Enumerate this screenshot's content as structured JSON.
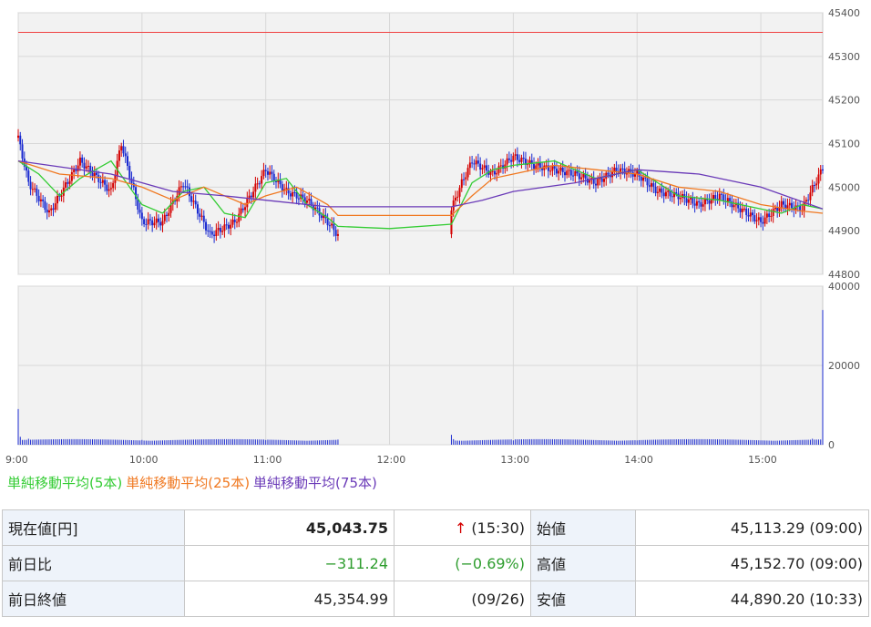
{
  "chart_data": [
    {
      "type": "candlestick",
      "ylim": [
        44800,
        45400
      ],
      "yticks": [
        "45400",
        "45300",
        "45200",
        "45100",
        "45000",
        "44900",
        "44800"
      ],
      "xticks": [
        "9:00",
        "10:00",
        "11:00",
        "12:00",
        "13:00",
        "14:00",
        "15:00"
      ],
      "reference_line": 45354.99,
      "colors": {
        "up": "#d40000",
        "down": "#1a2ad0",
        "ma5": "#33cc33",
        "ma25": "#f07820",
        "ma75": "#6a3ab8",
        "ref": "#f04040"
      },
      "series": [
        {
          "name": "単純移動平均(5本)",
          "points": [
            [
              "9:00",
              45060
            ],
            [
              "9:10",
              45030
            ],
            [
              "9:20",
              44980
            ],
            [
              "9:30",
              45020
            ],
            [
              "9:45",
              45060
            ],
            [
              "10:00",
              44960
            ],
            [
              "10:10",
              44940
            ],
            [
              "10:20",
              44990
            ],
            [
              "10:30",
              45000
            ],
            [
              "10:40",
              44940
            ],
            [
              "10:50",
              44930
            ],
            [
              "11:00",
              45010
            ],
            [
              "11:10",
              45020
            ],
            [
              "11:20",
              44960
            ],
            [
              "11:30",
              44930
            ],
            [
              "11:35",
              44910
            ],
            [
              "12:00",
              44905
            ],
            [
              "12:30",
              44915
            ],
            [
              "12:40",
              45010
            ],
            [
              "12:50",
              45040
            ],
            [
              "13:00",
              45050
            ],
            [
              "13:20",
              45060
            ],
            [
              "13:40",
              45020
            ],
            [
              "14:00",
              45040
            ],
            [
              "14:20",
              44980
            ],
            [
              "14:40",
              44970
            ],
            [
              "15:00",
              44950
            ],
            [
              "15:10",
              44940
            ],
            [
              "15:20",
              44960
            ],
            [
              "15:30",
              44950
            ]
          ]
        },
        {
          "name": "単純移動平均(25本)",
          "points": [
            [
              "9:00",
              45060
            ],
            [
              "9:20",
              45030
            ],
            [
              "9:45",
              45020
            ],
            [
              "10:00",
              45000
            ],
            [
              "10:15",
              44970
            ],
            [
              "10:30",
              45000
            ],
            [
              "10:50",
              44960
            ],
            [
              "11:00",
              44980
            ],
            [
              "11:15",
              45000
            ],
            [
              "11:30",
              44960
            ],
            [
              "11:35",
              44935
            ],
            [
              "12:30",
              44935
            ],
            [
              "12:40",
              44980
            ],
            [
              "12:50",
              45020
            ],
            [
              "13:00",
              45030
            ],
            [
              "13:20",
              45050
            ],
            [
              "13:40",
              45040
            ],
            [
              "14:00",
              45030
            ],
            [
              "14:20",
              45000
            ],
            [
              "14:40",
              44990
            ],
            [
              "15:00",
              44960
            ],
            [
              "15:20",
              44945
            ],
            [
              "15:30",
              44940
            ]
          ]
        },
        {
          "name": "単純移動平均(75本)",
          "points": [
            [
              "9:00",
              45060
            ],
            [
              "9:45",
              45030
            ],
            [
              "10:15",
              44990
            ],
            [
              "10:40",
              44980
            ],
            [
              "11:00",
              44970
            ],
            [
              "11:30",
              44955
            ],
            [
              "12:30",
              44955
            ],
            [
              "12:45",
              44970
            ],
            [
              "13:00",
              44990
            ],
            [
              "13:30",
              45010
            ],
            [
              "14:00",
              45040
            ],
            [
              "14:30",
              45030
            ],
            [
              "15:00",
              45000
            ],
            [
              "15:30",
              44950
            ]
          ]
        }
      ],
      "price_points": [
        [
          "9:00",
          45113.29
        ],
        [
          "9:05",
          45010
        ],
        [
          "9:15",
          44940
        ],
        [
          "9:30",
          45060
        ],
        [
          "9:45",
          44990
        ],
        [
          "9:50",
          45100
        ],
        [
          "10:00",
          44920
        ],
        [
          "10:10",
          44920
        ],
        [
          "10:20",
          45010
        ],
        [
          "10:33",
          44890.2
        ],
        [
          "10:45",
          44920
        ],
        [
          "11:00",
          45040
        ],
        [
          "11:10",
          44990
        ],
        [
          "11:20",
          44970
        ],
        [
          "11:30",
          44920
        ],
        [
          "11:35",
          44890
        ],
        [
          "12:30",
          44950
        ],
        [
          "12:35",
          45010
        ],
        [
          "12:40",
          45060
        ],
        [
          "12:50",
          45030
        ],
        [
          "13:00",
          45070
        ],
        [
          "13:10",
          45050
        ],
        [
          "13:20",
          45040
        ],
        [
          "13:30",
          45030
        ],
        [
          "13:40",
          45010
        ],
        [
          "13:50",
          45040
        ],
        [
          "14:00",
          45030
        ],
        [
          "14:10",
          44990
        ],
        [
          "14:20",
          44980
        ],
        [
          "14:30",
          44960
        ],
        [
          "14:40",
          44980
        ],
        [
          "14:50",
          44950
        ],
        [
          "15:00",
          44920
        ],
        [
          "15:10",
          44960
        ],
        [
          "15:20",
          44950
        ],
        [
          "15:30",
          45043.75
        ]
      ]
    },
    {
      "type": "bar",
      "ylim": [
        0,
        40000
      ],
      "yticks": [
        "40000",
        "20000",
        "0"
      ],
      "values_by_time": [
        [
          "9:00",
          9000
        ],
        [
          "9:01",
          2000
        ],
        [
          "9:05",
          1500
        ],
        [
          "10:00",
          1200
        ],
        [
          "11:00",
          1200
        ],
        [
          "11:35",
          1300
        ],
        [
          "12:30",
          2500
        ],
        [
          "12:31",
          1400
        ],
        [
          "13:00",
          1100
        ],
        [
          "14:00",
          1100
        ],
        [
          "15:00",
          1100
        ],
        [
          "15:25",
          1500
        ],
        [
          "15:30",
          34000
        ]
      ],
      "baseline": 1000
    }
  ],
  "legend": {
    "ma5": "単純移動平均(5本)",
    "ma25": "単純移動平均(25本)",
    "ma75": "単純移動平均(75本)"
  },
  "quote": {
    "current_label": "現在値[円]",
    "current_value": "45,043.75",
    "arrow": "↑",
    "current_time": "(15:30)",
    "open_label": "始値",
    "open_value": "45,113.29 (09:00)",
    "change_label": "前日比",
    "change_value": "−311.24",
    "change_pct": "(−0.69%)",
    "high_label": "高値",
    "high_value": "45,152.70 (09:00)",
    "prev_close_label": "前日終値",
    "prev_close_value": "45,354.99",
    "prev_close_date": "(09/26)",
    "low_label": "安値",
    "low_value": "44,890.20 (10:33)"
  }
}
